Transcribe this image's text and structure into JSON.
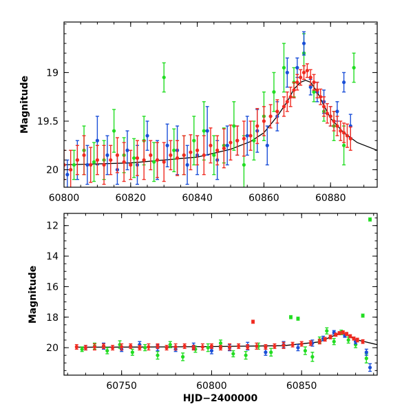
{
  "figure": {
    "xlabel": "HJD−2400000",
    "ylabel": "Magnitude"
  },
  "colors": {
    "green": "#22dd22",
    "blue": "#1a4fd8",
    "red": "#f02a20",
    "fit": "#000000"
  },
  "chart_data": [
    {
      "type": "scatter",
      "panel": "top",
      "xlabel": "",
      "ylabel": "Magnitude",
      "xlim": [
        60800,
        60894
      ],
      "ylim": [
        20.18,
        18.48
      ],
      "y_inverted": true,
      "xticks": [
        60800,
        60820,
        60840,
        60860,
        60880
      ],
      "yticks": [
        19,
        19.5,
        20
      ],
      "ytick_labels": [
        "19",
        "19.5",
        "20"
      ],
      "fit_curve": {
        "description": "smooth rise and fall",
        "x": [
          60800,
          60820,
          60840,
          60850,
          60856,
          60860,
          60864,
          60867,
          60869,
          60871,
          60872.5,
          60874,
          60876,
          60878,
          60880,
          60884,
          60888,
          60894
        ],
        "y": [
          19.95,
          19.93,
          19.87,
          19.79,
          19.71,
          19.62,
          19.45,
          19.3,
          19.17,
          19.1,
          19.08,
          19.1,
          19.2,
          19.34,
          19.47,
          19.62,
          19.72,
          19.8
        ]
      },
      "series": [
        {
          "color": "green",
          "x": [
            60803,
            60806,
            60809,
            60812,
            60815,
            60818,
            60821,
            60824,
            60827,
            60830,
            60833,
            60836,
            60839,
            60842,
            60845,
            60848,
            60851,
            60854,
            60857,
            60860,
            60863,
            60866,
            60869,
            60872,
            60875,
            60878,
            60881,
            60884,
            60887
          ],
          "y": [
            19.95,
            19.8,
            19.92,
            19.9,
            19.6,
            19.85,
            19.88,
            19.7,
            19.92,
            19.05,
            19.8,
            19.85,
            19.7,
            19.6,
            19.85,
            19.75,
            19.55,
            19.95,
            19.7,
            19.45,
            19.2,
            18.95,
            19.1,
            18.8,
            19.2,
            19.4,
            19.55,
            19.75,
            18.95
          ],
          "err": [
            0.15,
            0.25,
            0.2,
            0.2,
            0.22,
            0.18,
            0.2,
            0.25,
            0.2,
            0.15,
            0.22,
            0.2,
            0.25,
            0.3,
            0.2,
            0.18,
            0.25,
            0.3,
            0.2,
            0.25,
            0.2,
            0.25,
            0.15,
            0.2,
            0.1,
            0.1,
            0.15,
            0.2,
            0.15
          ]
        },
        {
          "color": "blue",
          "x": [
            60801,
            60804,
            60807,
            60810,
            60813,
            60816,
            60819,
            60822,
            60825,
            60828,
            60831,
            60834,
            60837,
            60840,
            60843,
            60846,
            60849,
            60852,
            60855,
            60858,
            60861,
            60864,
            60867,
            60870,
            60872,
            60874,
            60876,
            60878,
            60880,
            60882,
            60884,
            60886
          ],
          "y": [
            20.05,
            19.9,
            19.95,
            19.7,
            19.85,
            20.0,
            19.8,
            19.95,
            19.65,
            19.9,
            19.75,
            19.8,
            19.95,
            19.85,
            19.6,
            19.9,
            19.75,
            19.7,
            19.65,
            19.6,
            19.75,
            19.45,
            19.0,
            18.95,
            18.7,
            19.15,
            19.2,
            19.3,
            19.45,
            19.4,
            19.1,
            19.55
          ],
          "err": [
            0.15,
            0.2,
            0.2,
            0.25,
            0.2,
            0.15,
            0.2,
            0.2,
            0.15,
            0.2,
            0.22,
            0.25,
            0.2,
            0.2,
            0.25,
            0.2,
            0.2,
            0.15,
            0.2,
            0.22,
            0.2,
            0.15,
            0.15,
            0.1,
            0.12,
            0.08,
            0.1,
            0.12,
            0.1,
            0.1,
            0.1,
            0.12
          ]
        },
        {
          "color": "red",
          "x": [
            60800,
            60802,
            60804,
            60806,
            60808,
            60810,
            60812,
            60814,
            60816,
            60818,
            60820,
            60822,
            60824,
            60826,
            60828,
            60830,
            60832,
            60834,
            60836,
            60838,
            60840,
            60842,
            60844,
            60846,
            60848,
            60850,
            60852,
            60854,
            60856,
            60858,
            60860,
            60862,
            60864,
            60866,
            60867,
            60868,
            60869,
            60870,
            60871,
            60872,
            60873,
            60874,
            60875,
            60876,
            60877,
            60878,
            60879,
            60880,
            60881,
            60882,
            60883,
            60884,
            60885,
            60886
          ],
          "y": [
            19.95,
            20.0,
            19.9,
            19.85,
            19.95,
            19.9,
            19.95,
            19.9,
            19.85,
            19.92,
            19.95,
            19.88,
            19.9,
            19.85,
            19.9,
            19.92,
            19.85,
            19.88,
            19.85,
            19.82,
            19.8,
            19.85,
            19.75,
            19.8,
            19.78,
            19.72,
            19.7,
            19.68,
            19.65,
            19.55,
            19.5,
            19.45,
            19.4,
            19.35,
            19.3,
            19.25,
            19.18,
            19.1,
            19.05,
            19.0,
            18.98,
            19.05,
            19.1,
            19.18,
            19.25,
            19.35,
            19.42,
            19.45,
            19.5,
            19.55,
            19.6,
            19.62,
            19.65,
            19.68
          ],
          "err": [
            0.15,
            0.2,
            0.15,
            0.2,
            0.18,
            0.15,
            0.2,
            0.15,
            0.18,
            0.2,
            0.15,
            0.18,
            0.2,
            0.15,
            0.18,
            0.2,
            0.15,
            0.18,
            0.2,
            0.18,
            0.15,
            0.2,
            0.18,
            0.15,
            0.2,
            0.18,
            0.15,
            0.18,
            0.15,
            0.18,
            0.15,
            0.12,
            0.12,
            0.1,
            0.1,
            0.1,
            0.08,
            0.08,
            0.08,
            0.07,
            0.07,
            0.08,
            0.08,
            0.08,
            0.08,
            0.1,
            0.1,
            0.1,
            0.1,
            0.1,
            0.1,
            0.1,
            0.12,
            0.12
          ]
        }
      ]
    },
    {
      "type": "scatter",
      "panel": "bottom",
      "xlabel": "HJD−2400000",
      "ylabel": "Magnitude",
      "xlim": [
        60718,
        60892
      ],
      "ylim": [
        21.8,
        11.2
      ],
      "y_inverted": true,
      "xticks": [
        60750,
        60800,
        60850
      ],
      "yticks": [
        12,
        14,
        16,
        18,
        20
      ],
      "ytick_labels": [
        "12",
        "14",
        "16",
        "18",
        "20"
      ],
      "fit_curve": {
        "description": "same model, compressed scale",
        "x": [
          60725,
          60760,
          60800,
          60840,
          60860,
          60866,
          60870,
          60872.5,
          60875,
          60880,
          60892
        ],
        "y": [
          19.97,
          19.96,
          19.93,
          19.87,
          19.62,
          19.3,
          19.12,
          19.08,
          19.15,
          19.47,
          19.8
        ]
      },
      "series": [
        {
          "color": "green",
          "x": [
            60728,
            60735,
            60742,
            60749,
            60756,
            60763,
            60770,
            60777,
            60784,
            60791,
            60798,
            60805,
            60812,
            60819,
            60826,
            60833,
            60840,
            60844,
            60848,
            60852,
            60856,
            60860,
            60864,
            60868,
            60872,
            60876,
            60880,
            60884,
            60886,
            60888
          ],
          "y": [
            20.1,
            19.9,
            20.2,
            19.8,
            20.3,
            20.0,
            20.5,
            19.8,
            20.6,
            20.1,
            20.0,
            19.7,
            20.4,
            20.5,
            19.9,
            20.3,
            19.8,
            18.0,
            18.1,
            20.2,
            20.6,
            19.5,
            18.9,
            19.6,
            19.0,
            19.5,
            19.8,
            17.9,
            20.7,
            11.6
          ],
          "err": [
            0.15,
            0.2,
            0.2,
            0.25,
            0.2,
            0.2,
            0.25,
            0.2,
            0.25,
            0.2,
            0.25,
            0.2,
            0.2,
            0.25,
            0.2,
            0.25,
            0.2,
            0.1,
            0.1,
            0.25,
            0.3,
            0.2,
            0.2,
            0.2,
            0.15,
            0.2,
            0.2,
            0.1,
            0.3,
            0.1
          ]
        },
        {
          "color": "blue",
          "x": [
            60730,
            60740,
            60750,
            60760,
            60770,
            60780,
            60790,
            60800,
            60810,
            60820,
            60830,
            60840,
            60848,
            60856,
            60862,
            60868,
            60874,
            60880,
            60886,
            60888
          ],
          "y": [
            20.0,
            19.9,
            20.1,
            19.8,
            20.0,
            20.1,
            19.9,
            20.2,
            20.0,
            19.9,
            20.3,
            19.8,
            20.0,
            19.7,
            19.4,
            19.0,
            19.2,
            19.6,
            20.3,
            21.3
          ],
          "err": [
            0.15,
            0.2,
            0.15,
            0.2,
            0.2,
            0.15,
            0.2,
            0.2,
            0.2,
            0.25,
            0.2,
            0.2,
            0.2,
            0.2,
            0.15,
            0.12,
            0.12,
            0.15,
            0.2,
            0.25
          ]
        },
        {
          "color": "red",
          "x": [
            60725,
            60730,
            60735,
            60740,
            60745,
            60750,
            60755,
            60760,
            60765,
            60770,
            60775,
            60780,
            60785,
            60790,
            60795,
            60800,
            60805,
            60810,
            60815,
            60820,
            60823,
            60825,
            60830,
            60835,
            60840,
            60845,
            60850,
            60855,
            60860,
            60863,
            60866,
            60869,
            60871,
            60873,
            60875,
            60877,
            60879,
            60881,
            60884
          ],
          "y": [
            19.95,
            20.0,
            19.95,
            19.9,
            20.0,
            19.95,
            19.9,
            20.0,
            19.95,
            19.9,
            20.0,
            19.95,
            19.9,
            20.0,
            19.95,
            19.9,
            20.0,
            19.95,
            19.9,
            19.95,
            18.3,
            19.9,
            19.95,
            19.9,
            19.85,
            19.8,
            19.75,
            19.7,
            19.6,
            19.45,
            19.3,
            19.15,
            19.05,
            19.0,
            19.1,
            19.25,
            19.4,
            19.5,
            19.6
          ],
          "err": [
            0.15,
            0.15,
            0.2,
            0.15,
            0.15,
            0.2,
            0.15,
            0.15,
            0.2,
            0.15,
            0.15,
            0.2,
            0.15,
            0.15,
            0.2,
            0.15,
            0.15,
            0.2,
            0.15,
            0.15,
            0.1,
            0.2,
            0.15,
            0.15,
            0.2,
            0.15,
            0.15,
            0.15,
            0.15,
            0.12,
            0.12,
            0.1,
            0.1,
            0.1,
            0.1,
            0.1,
            0.1,
            0.12,
            0.12
          ]
        }
      ]
    }
  ]
}
